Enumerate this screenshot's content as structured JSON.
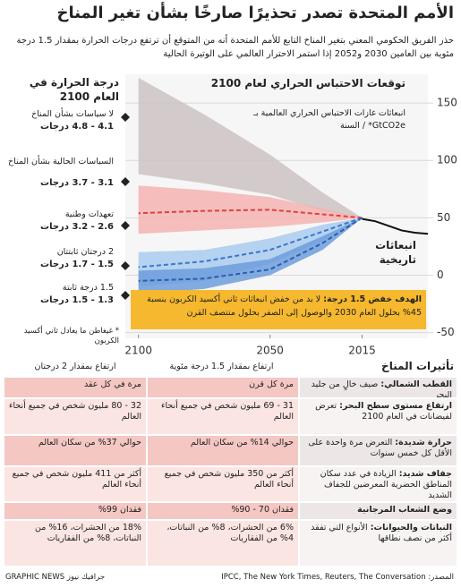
{
  "title": "الأمم المتحدة تصدر تحذيرًا صارخًا بشأن تغير المناخ",
  "subtitle": "حذر الفريق الحكومي المعني بتغير المناخ التابع للأمم المتحدة أنه من المتوقع أن ترتفع درجات الحرارة بمقدار 1.5 درجة مئوية بين العامين 2030 و2052 إذا استمر الاحترار العالمي على الوتيرة الحالية",
  "chart_data": {
    "type": "line",
    "title": "توقعات الاحتباس الحراري لعام 2100",
    "y_label": "انبعاثات غازات الاحتباس الحراري العالمية بـ GtCO2e* / السنة",
    "legend_title": "درجة الحرارة في العام 2100",
    "footnote": "* غيغاطن ما يعادل ثاني أكسيد الكربون",
    "annotation": {
      "label": "الهدف خفض 1.5 درجة:",
      "text": "لا بد من خفض انبعاثات ثاني أكسيد الكربون بنسبة 45% بحلول العام 2030 والوصول إلى الصفر بحلول منتصف القرن"
    },
    "x": [
      2015,
      2030,
      2050,
      2075,
      2100
    ],
    "xlim": [
      2105,
      1990
    ],
    "xticks": [
      2100,
      2050,
      2015
    ],
    "ylim": [
      -55,
      175
    ],
    "yticks": [
      150,
      100,
      50,
      0,
      -50
    ],
    "grid": true,
    "series": [
      {
        "name": "لا سياسات بشأن المناخ",
        "temperature": "4.1 - 4.8 درجات",
        "color": "#cdc3c3",
        "lower": [
          50,
          56,
          70,
          80,
          88
        ],
        "upper": [
          50,
          72,
          105,
          140,
          172
        ]
      },
      {
        "name": "السياسات الحالية بشأن المناخ",
        "temperature": "3.1 - 3.7 درجات",
        "color": "#f4b3b0",
        "lower": [
          50,
          46,
          42,
          39,
          36
        ],
        "upper": [
          50,
          58,
          68,
          74,
          78
        ]
      },
      {
        "name": "تعهدات وطنية",
        "temperature": "2.6 - 3.2 درجات",
        "line_color": "#e0403e",
        "dashed": true,
        "values": [
          50,
          53,
          57,
          56,
          54
        ]
      },
      {
        "name": "2 درجتان ثابتتان",
        "temperature": "1.5 - 1.7 درجات",
        "color": "#a9cbef",
        "line_color": "#3a78c9",
        "dashed": true,
        "lower": [
          50,
          30,
          10,
          -5,
          -10
        ],
        "upper": [
          50,
          44,
          32,
          22,
          20
        ],
        "values": [
          50,
          38,
          22,
          12,
          7
        ]
      },
      {
        "name": "1.5 درجة ثابتة",
        "temperature": "1.3 - 1.5 درجات",
        "color": "#6d9ddc",
        "line_color": "#2a5fae",
        "dashed": true,
        "lower": [
          50,
          22,
          0,
          -12,
          -16
        ],
        "upper": [
          50,
          34,
          14,
          6,
          4
        ],
        "values": [
          50,
          28,
          5,
          -3,
          -5
        ]
      },
      {
        "name": "انبعاثات تاريخية",
        "line_color": "#111111",
        "x": [
          1990,
          1995,
          2000,
          2005,
          2010,
          2015
        ],
        "values": [
          36,
          37,
          39,
          43,
          47,
          49
        ]
      }
    ]
  },
  "impacts": {
    "title": "تأثيرات المناخ",
    "columns": [
      "ارتفاع بمقدار 1.5 درجة مئوية",
      "ارتفاع بمقدار 2 درجتان"
    ],
    "rows": [
      {
        "label": "القطب الشمالي:",
        "text": "صيف خالٍ من جليد البحر",
        "c15": "مرة كل قرن",
        "c2": "مرة في كل عقد"
      },
      {
        "label": "ارتفاع مستوى سطح البحر:",
        "text": "تعرض لفيضانات في العام 2100",
        "c15": "31 - 69 مليون شخص في جميع أنحاء العالم",
        "c2": "32 - 80 مليون شخص في جميع أنحاء العالم"
      },
      {
        "label": "حرارة شديدة:",
        "text": "التعرض مرة واحدة على الأقل كل خمس سنوات",
        "c15": "حوالي 14% من سكان العالم",
        "c2": "حوالي 37% من سكان العالم"
      },
      {
        "label": "جفاف شديد:",
        "text": "الزيادة في عدد سكان المناطق الحضرية المعرضين للجفاف الشديد",
        "c15": "أكثر من 350 مليون شخص في جميع أنحاء العالم",
        "c2": "أكثر من 411 مليون شخص في جميع أنحاء العالم"
      },
      {
        "label": "وضع الشعاب المرجانية",
        "text": "",
        "c15": "فقدان 70 - 90%",
        "c2": "فقدان 99%"
      },
      {
        "label": "النباتات والحيوانات:",
        "text": "الأنواع التي تفقد أكثر من نصف نطاقها",
        "c15": "6% من الحشرات، 8% من النباتات، 4% من الفقاريات",
        "c2": "18% من الحشرات، 16% من النباتات، 8% من الفقاريات"
      }
    ]
  },
  "footer": {
    "brand": "GRAPHIC NEWS جرافيك نيوز",
    "source": "المصدر: IPCC, The New York Times, Reuters, The Conversation"
  }
}
